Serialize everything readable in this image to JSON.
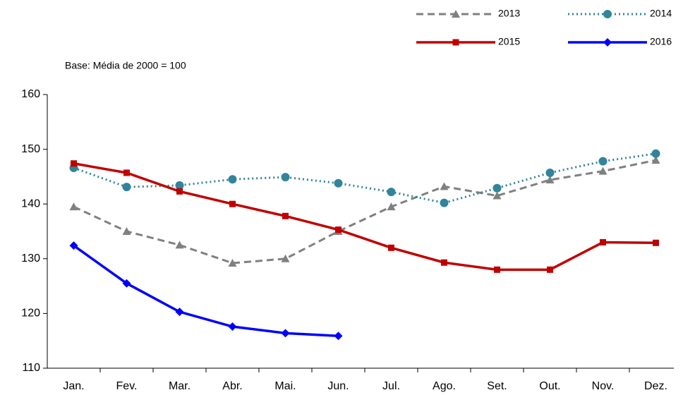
{
  "chart_data": {
    "type": "line",
    "subtitle": "Base: Média de 2000  = 100",
    "categories": [
      "Jan.",
      "Fev.",
      "Mar.",
      "Abr.",
      "Mai.",
      "Jun.",
      "Jul.",
      "Ago.",
      "Set.",
      "Out.",
      "Nov.",
      "Dez."
    ],
    "series": [
      {
        "name": "2013",
        "color": "#808080",
        "dash": "dashed",
        "marker": "triangle",
        "values": [
          139.5,
          135,
          132.5,
          129.2,
          130,
          135,
          139.5,
          143.2,
          141.5,
          144.4,
          146,
          148
        ]
      },
      {
        "name": "2014",
        "color": "#31849b",
        "dash": "dotted",
        "marker": "circle",
        "values": [
          146.6,
          143.1,
          143.4,
          144.5,
          144.9,
          143.8,
          142.2,
          140.2,
          142.9,
          145.7,
          147.8,
          149.2
        ]
      },
      {
        "name": "2015",
        "color": "#c00000",
        "dash": "solid",
        "marker": "square",
        "values": [
          147.4,
          145.7,
          142.3,
          140,
          137.8,
          135.3,
          132,
          129.3,
          128,
          128,
          133,
          132.9
        ]
      },
      {
        "name": "2016",
        "color": "#0000ff",
        "dash": "solid",
        "marker": "diamond",
        "values": [
          132.4,
          125.5,
          120.3,
          117.6,
          116.4,
          115.9,
          null,
          null,
          null,
          null,
          null,
          null
        ]
      }
    ],
    "ylim": [
      110,
      160
    ],
    "yticks": [
      110,
      120,
      130,
      140,
      150,
      160
    ],
    "grid": false,
    "legend": "top-right"
  }
}
